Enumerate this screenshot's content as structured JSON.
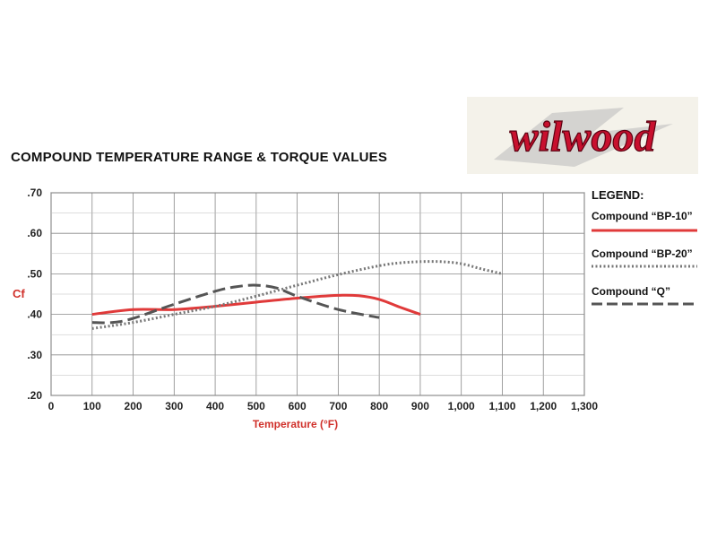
{
  "chart_data": {
    "type": "line",
    "title": "COMPOUND TEMPERATURE RANGE & TORQUE VALUES",
    "xlabel": "Temperature (°F)",
    "ylabel": "Cf",
    "xlim": [
      0,
      1300
    ],
    "ylim": [
      0.2,
      0.7
    ],
    "x_ticks": [
      0,
      100,
      200,
      300,
      400,
      500,
      600,
      700,
      800,
      900,
      1000,
      1100,
      1200,
      1300
    ],
    "x_tick_labels": [
      "0",
      "100",
      "200",
      "300",
      "400",
      "500",
      "600",
      "700",
      "800",
      "900",
      "1,000",
      "1,100",
      "1,200",
      "1,300"
    ],
    "y_ticks": [
      0.2,
      0.3,
      0.4,
      0.5,
      0.6,
      0.7
    ],
    "y_tick_labels": [
      ".20",
      ".30",
      ".40",
      ".50",
      ".60",
      ".70"
    ],
    "grid": true,
    "legend_title": "LEGEND:",
    "legend_position": "right",
    "series": [
      {
        "name": "Compound “BP-10”",
        "style": "solid",
        "color": "#e03a3a",
        "x": [
          100,
          200,
          300,
          400,
          500,
          600,
          700,
          750,
          800,
          850,
          900
        ],
        "y": [
          0.4,
          0.412,
          0.412,
          0.42,
          0.43,
          0.44,
          0.447,
          0.446,
          0.437,
          0.418,
          0.4
        ]
      },
      {
        "name": "Compound “BP-20”",
        "style": "dotted",
        "color": "#777777",
        "x": [
          100,
          200,
          300,
          400,
          500,
          600,
          700,
          800,
          850,
          900,
          950,
          1000,
          1050,
          1100
        ],
        "y": [
          0.365,
          0.38,
          0.4,
          0.42,
          0.445,
          0.472,
          0.498,
          0.52,
          0.527,
          0.53,
          0.53,
          0.525,
          0.512,
          0.5
        ]
      },
      {
        "name": "Compound “Q”",
        "style": "dashed",
        "color": "#555555",
        "x": [
          100,
          150,
          200,
          300,
          400,
          450,
          500,
          550,
          600,
          700,
          800
        ],
        "y": [
          0.38,
          0.38,
          0.39,
          0.425,
          0.457,
          0.468,
          0.472,
          0.465,
          0.445,
          0.412,
          0.392
        ]
      }
    ]
  },
  "logo": {
    "text": "wilwood",
    "color": "#c8102e"
  }
}
